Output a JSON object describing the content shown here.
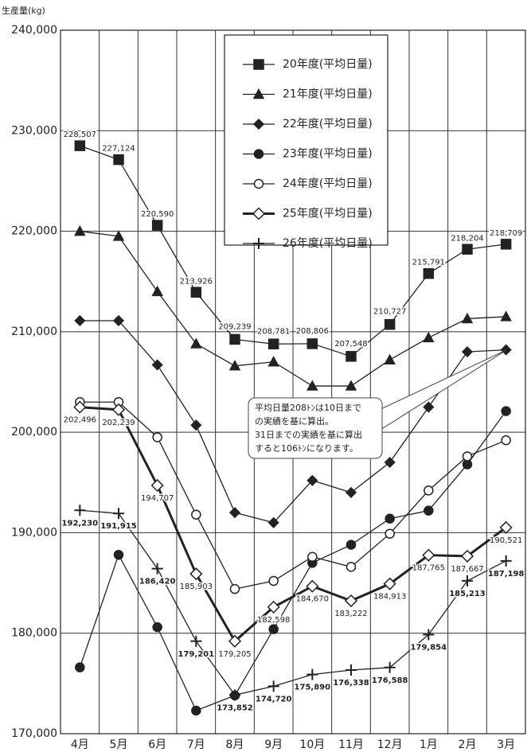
{
  "chart_data": {
    "type": "line",
    "y_axis_label": "生産量(kg)",
    "categories": [
      "4月",
      "5月",
      "6月",
      "7月",
      "8月",
      "9月",
      "10月",
      "11月",
      "12月",
      "1月",
      "2月",
      "3月"
    ],
    "ylim": [
      170000,
      240000
    ],
    "yticks": [
      {
        "value": 170000,
        "label": "170,000"
      },
      {
        "value": 180000,
        "label": "180,000"
      },
      {
        "value": 190000,
        "label": "190,000"
      },
      {
        "value": 200000,
        "label": "200,000"
      },
      {
        "value": 210000,
        "label": "210,000"
      },
      {
        "value": 220000,
        "label": "220,000"
      },
      {
        "value": 230000,
        "label": "230,000"
      },
      {
        "value": 240000,
        "label": "240,000"
      }
    ],
    "grid": true,
    "series": [
      {
        "name": "20年度(平均日量)",
        "color": "#222222",
        "marker": "square",
        "line_width": 1.3,
        "values": [
          228507,
          227124,
          220590,
          213926,
          209239,
          208781,
          208806,
          207548,
          210727,
          215791,
          218204,
          218709
        ],
        "value_labels": [
          "228,507",
          "227,124",
          "220,590",
          "213,926",
          "209,239",
          "208,781",
          "208,806",
          "207,548",
          "210,727",
          "215,791",
          "218,204",
          "218,709"
        ]
      },
      {
        "name": "21年度(平均日量)",
        "color": "#222222",
        "marker": "triangle",
        "line_width": 1.3,
        "values": [
          220000,
          219500,
          214000,
          208800,
          206600,
          207000,
          204600,
          204600,
          207200,
          209400,
          211300,
          211500
        ]
      },
      {
        "name": "22年度(平均日量)",
        "color": "#222222",
        "marker": "diamond",
        "line_width": 1.3,
        "values": [
          211100,
          211100,
          206700,
          200700,
          192000,
          191000,
          195200,
          194000,
          197000,
          202500,
          208000,
          208200
        ]
      },
      {
        "name": "23年度(平均日量)",
        "color": "#222222",
        "marker": "circle",
        "line_width": 1.3,
        "values": [
          176600,
          187800,
          180600,
          172300,
          173800,
          180400,
          187000,
          188800,
          191400,
          192200,
          196800,
          202100
        ]
      },
      {
        "name": "24年度(平均日量)",
        "color": "#222222",
        "marker": "open-circle",
        "line_width": 1.3,
        "values": [
          203000,
          203000,
          199500,
          191800,
          184400,
          185200,
          187600,
          186600,
          189900,
          194200,
          197600,
          199200
        ]
      },
      {
        "name": "25年度(平均日量)",
        "color": "#222222",
        "marker": "open-diamond",
        "line_width": 3,
        "values": [
          202496,
          202239,
          194707,
          185903,
          179205,
          182598,
          184670,
          183222,
          184913,
          187765,
          187667,
          190521
        ],
        "value_labels": [
          "202,496",
          "202,239",
          "194,707",
          "185,903",
          "179,205",
          "182,598",
          "184,670",
          "183,222",
          "184,913",
          "187,765",
          "187,667",
          "190,521"
        ]
      },
      {
        "name": "26年度(平均日量)",
        "color": "#222222",
        "marker": "plus",
        "line_width": 1.3,
        "values": [
          192230,
          191915,
          186420,
          179201,
          173852,
          174720,
          175890,
          176338,
          176588,
          179854,
          185213,
          187198
        ],
        "value_labels": [
          "192,230",
          "191,915",
          "186,420",
          "179,201",
          "173,852",
          "174,720",
          "175,890",
          "176,338",
          "176,588",
          "179,854",
          "185,213",
          "187,198"
        ]
      }
    ],
    "annotation": [
      "平均日量208ﾄﾝは10日まで",
      "の実績を基に算出。",
      "31日までの実績を基に算出",
      "すると106ﾄﾝになります。"
    ]
  }
}
